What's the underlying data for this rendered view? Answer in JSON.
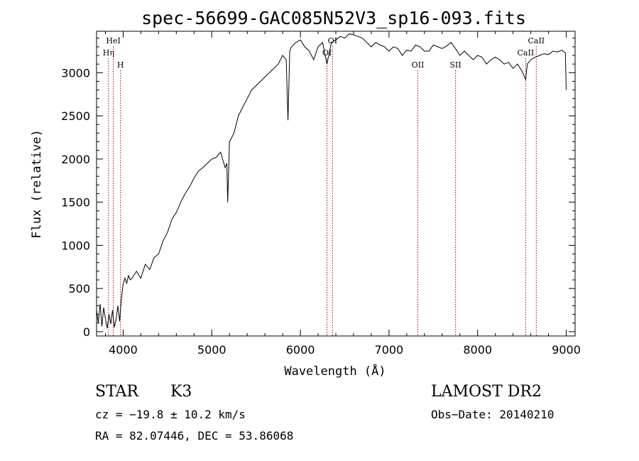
{
  "chart_data": {
    "type": "line",
    "title": "spec-56699-GAC085N52V3_sp16-093.fits",
    "xlabel": "Wavelength (Å)",
    "ylabel": "Flux (relative)",
    "xlim": [
      3700,
      9100
    ],
    "ylim": [
      -50,
      3480
    ],
    "xticks": [
      4000,
      5000,
      6000,
      7000,
      8000,
      9000
    ],
    "yticks": [
      0,
      500,
      1000,
      1500,
      2000,
      2500,
      3000
    ],
    "grid": false,
    "line_color": "#000000",
    "marker_color": "#a00000",
    "series": [
      {
        "x": [
          3700,
          3720,
          3740,
          3760,
          3780,
          3800,
          3820,
          3840,
          3860,
          3880,
          3900,
          3920,
          3940,
          3960,
          3980,
          4000,
          4020,
          4040,
          4060,
          4080,
          4100,
          4150,
          4200,
          4250,
          4300,
          4350,
          4400,
          4450,
          4500,
          4550,
          4600,
          4650,
          4700,
          4750,
          4800,
          4850,
          4900,
          4950,
          5000,
          5050,
          5100,
          5150,
          5170,
          5180,
          5190,
          5200,
          5250,
          5300,
          5350,
          5400,
          5450,
          5500,
          5550,
          5600,
          5650,
          5700,
          5750,
          5800,
          5840,
          5860,
          5880,
          5890,
          5900,
          5950,
          6000,
          6050,
          6100,
          6150,
          6200,
          6250,
          6300,
          6350,
          6400,
          6450,
          6500,
          6550,
          6600,
          6650,
          6700,
          6750,
          6800,
          6850,
          6900,
          6950,
          7000,
          7050,
          7100,
          7150,
          7200,
          7250,
          7300,
          7350,
          7400,
          7450,
          7500,
          7550,
          7600,
          7650,
          7700,
          7750,
          7800,
          7850,
          7900,
          7950,
          8000,
          8050,
          8100,
          8150,
          8200,
          8250,
          8300,
          8350,
          8400,
          8450,
          8500,
          8542,
          8560,
          8600,
          8650,
          8700,
          8750,
          8800,
          8850,
          8900,
          8950,
          8990,
          9000
        ],
        "y": [
          250,
          100,
          320,
          60,
          280,
          150,
          40,
          200,
          90,
          250,
          50,
          140,
          300,
          120,
          380,
          550,
          620,
          560,
          650,
          600,
          620,
          700,
          620,
          780,
          720,
          860,
          900,
          1050,
          1150,
          1300,
          1380,
          1500,
          1600,
          1680,
          1780,
          1860,
          1900,
          1950,
          2000,
          2020,
          2080,
          1900,
          1950,
          1500,
          1850,
          2200,
          2300,
          2500,
          2600,
          2700,
          2800,
          2850,
          2900,
          2950,
          3000,
          3050,
          3100,
          3200,
          3150,
          2450,
          3250,
          3280,
          3300,
          3350,
          3380,
          3300,
          3250,
          3150,
          3300,
          3350,
          3100,
          3350,
          3380,
          3420,
          3400,
          3450,
          3440,
          3420,
          3400,
          3350,
          3300,
          3350,
          3320,
          3300,
          3250,
          3300,
          3280,
          3200,
          3260,
          3250,
          3320,
          3300,
          3250,
          3250,
          3320,
          3300,
          3280,
          3310,
          3350,
          3280,
          3200,
          3250,
          3200,
          3150,
          3200,
          3180,
          3100,
          3150,
          3180,
          3150,
          3100,
          3120,
          3050,
          3100,
          3020,
          2920,
          3100,
          3150,
          3180,
          3200,
          3220,
          3210,
          3250,
          3240,
          3260,
          3230,
          2800
        ]
      }
    ],
    "lines": [
      {
        "label": "HeI",
        "x": 3889,
        "pos": "top"
      },
      {
        "label": "Hη",
        "x": 3835,
        "pos": "mid"
      },
      {
        "label": "H",
        "x": 3970,
        "pos": "low"
      },
      {
        "label": "OI",
        "x": 6363,
        "pos": "top"
      },
      {
        "label": "OI",
        "x": 6300,
        "pos": "mid"
      },
      {
        "label": "OII",
        "x": 7325,
        "pos": "low"
      },
      {
        "label": "SII",
        "x": 7751,
        "pos": "low"
      },
      {
        "label": "CaII",
        "x": 8662,
        "pos": "top"
      },
      {
        "label": "CaII",
        "x": 8542,
        "pos": "mid"
      }
    ]
  },
  "info": {
    "class_label": "STAR",
    "subclass_label": "K3",
    "cz": "cz = −19.8 ± 10.2 km/s",
    "coords": "RA =  82.07446, DEC =  53.86068",
    "survey": "LAMOST DR2",
    "obs_date": "Obs−Date: 20140210"
  }
}
